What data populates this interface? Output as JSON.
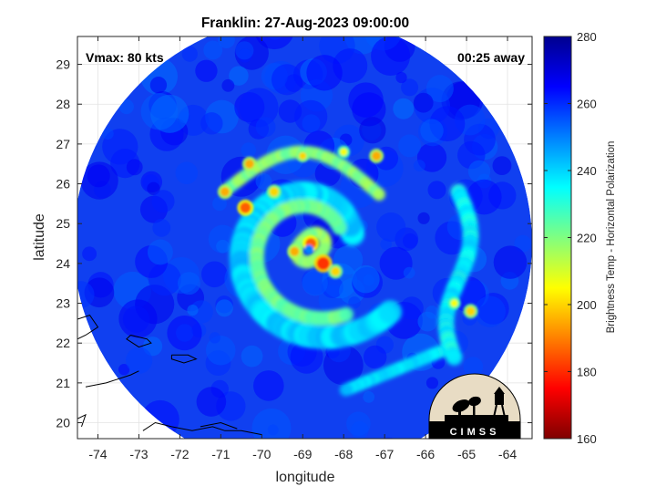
{
  "chart_data": {
    "type": "heatmap",
    "title": "Franklin: 27-Aug-2023 09:00:00",
    "xlabel": "longitude",
    "ylabel": "latitude",
    "xlim": [
      -74.5,
      -63.4
    ],
    "ylim": [
      19.6,
      29.7
    ],
    "xticks": [
      -74,
      -73,
      -72,
      -71,
      -70,
      -69,
      -68,
      -67,
      -66,
      -65,
      -64
    ],
    "yticks": [
      20,
      21,
      22,
      23,
      24,
      25,
      26,
      27,
      28,
      29
    ],
    "grid": true,
    "annotations": {
      "vmax": "Vmax: 80 kts",
      "time_offset": "00:25 away"
    },
    "storm_center": {
      "lon": -68.8,
      "lat": 24.4
    },
    "swath": {
      "center_lon": -69.0,
      "center_lat": 24.5,
      "radius_deg": 5.6
    },
    "colorbar": {
      "label": "Brightness Temp - Horizontal Polarization",
      "range": [
        160,
        280
      ],
      "ticks": [
        160,
        180,
        200,
        220,
        240,
        260,
        280
      ],
      "colors": [
        "#7f0000",
        "#ff0000",
        "#ff8000",
        "#ffff00",
        "#80ff80",
        "#00ffff",
        "#0080ff",
        "#0000ff",
        "#00008f"
      ]
    },
    "logo_text": "CIMSS"
  }
}
